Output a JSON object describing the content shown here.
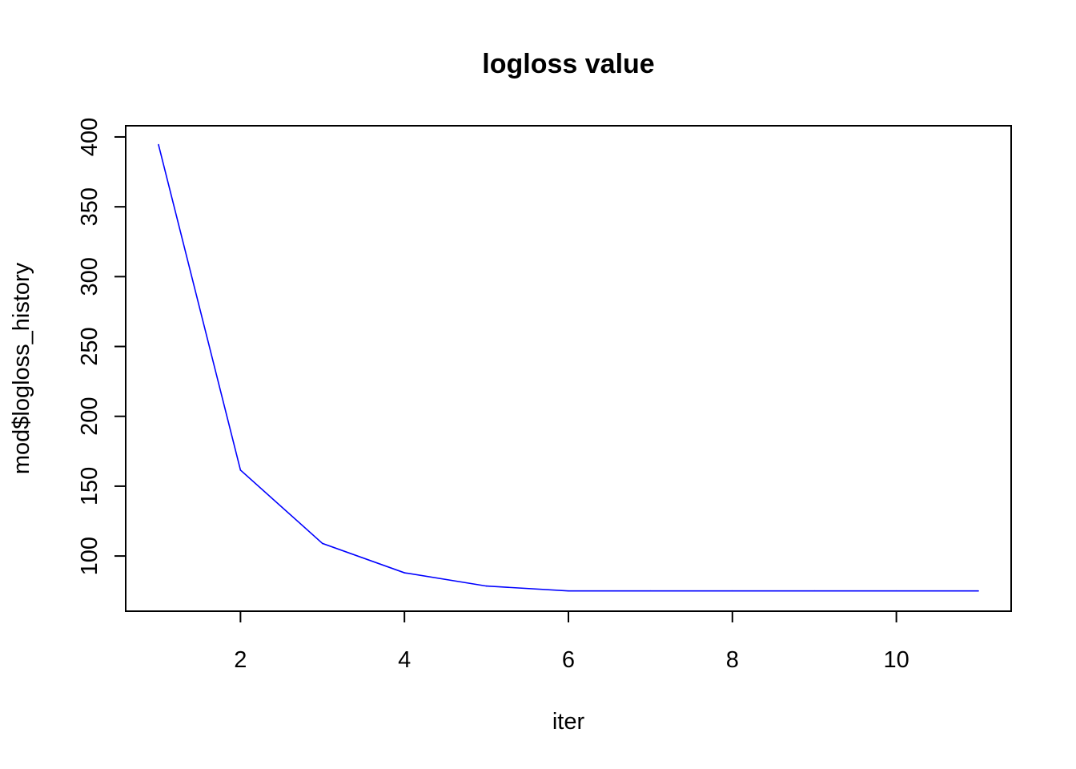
{
  "chart_data": {
    "type": "line",
    "title": "logloss value",
    "xlabel": "iter",
    "ylabel": "mod$logloss_history",
    "x": [
      1,
      2,
      3,
      4,
      5,
      6,
      7,
      8,
      9,
      10,
      11
    ],
    "series": [
      {
        "values": [
          394.5,
          161.5,
          109,
          88,
          78.5,
          75,
          75,
          75,
          75,
          75,
          75
        ],
        "color": "#0000ff"
      }
    ],
    "xlim": [
      0.6,
      11.4
    ],
    "ylim": [
      60.5,
      408
    ],
    "xticks": [
      2,
      4,
      6,
      8,
      10
    ],
    "xtick_labels": [
      "2",
      "4",
      "6",
      "8",
      "10"
    ],
    "yticks": [
      100,
      150,
      200,
      250,
      300,
      350,
      400
    ],
    "ytick_labels": [
      "100",
      "150",
      "200",
      "250",
      "300",
      "350",
      "400"
    ],
    "grid": false,
    "legend": "none"
  }
}
